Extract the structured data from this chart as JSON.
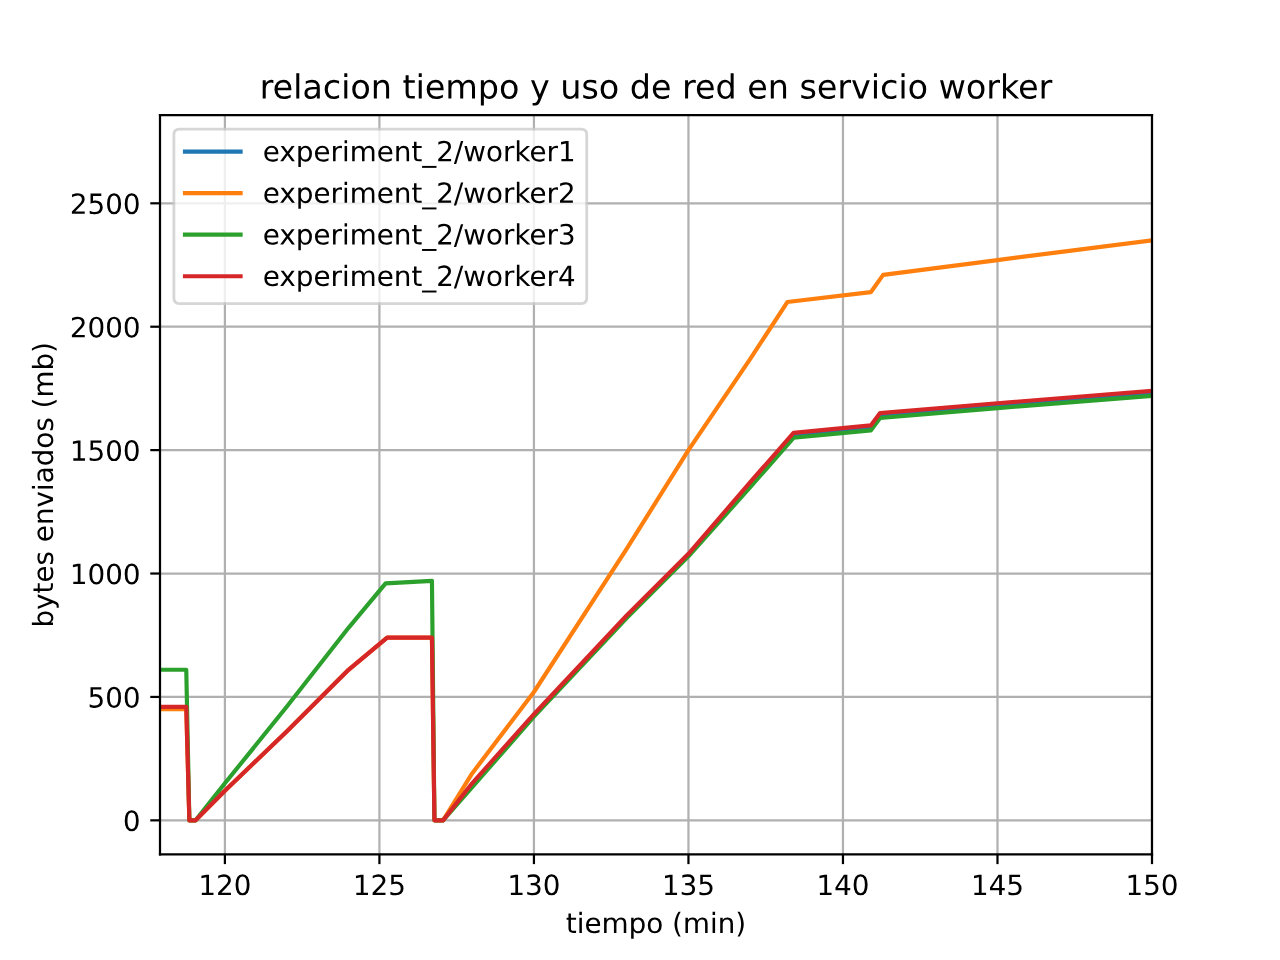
{
  "chart_data": {
    "type": "line",
    "title": "relacion tiempo y uso de red en servicio worker",
    "xlabel": "tiempo (min)",
    "ylabel": "bytes enviados (mb)",
    "xlim": [
      117.9,
      150
    ],
    "ylim": [
      -138,
      2857
    ],
    "xticks": [
      120,
      125,
      130,
      135,
      140,
      145,
      150
    ],
    "yticks": [
      0,
      500,
      1000,
      1500,
      2000,
      2500
    ],
    "grid": true,
    "legend": "top left",
    "series": [
      {
        "name": "experiment_2/worker1",
        "color": "#1f77b4",
        "x": [
          138.4,
          140.9,
          141.2,
          145,
          150
        ],
        "values": [
          1560,
          1590,
          1640,
          1680,
          1730
        ]
      },
      {
        "name": "experiment_2/worker2",
        "color": "#ff7f0e",
        "x": [
          117.9,
          118.75,
          118.85,
          119.05,
          120,
          122,
          124,
          125.25,
          126.7,
          126.78,
          127.06,
          128,
          130,
          133,
          135,
          137,
          138.2,
          140.9,
          141.3,
          145,
          150
        ],
        "values": [
          450,
          450,
          0,
          0,
          120,
          360,
          610,
          740,
          740,
          0,
          0,
          190,
          520,
          1100,
          1500,
          1870,
          2100,
          2140,
          2210,
          2270,
          2350
        ]
      },
      {
        "name": "experiment_2/worker3",
        "color": "#2ca02c",
        "x": [
          117.9,
          118.75,
          118.85,
          119.05,
          120,
          122,
          124,
          125.2,
          126.7,
          126.78,
          127.06,
          130,
          133,
          135,
          137,
          138.4,
          140.9,
          141.2,
          145,
          150
        ],
        "values": [
          610,
          610,
          0,
          0,
          150,
          460,
          780,
          960,
          970,
          0,
          0,
          420,
          820,
          1070,
          1350,
          1550,
          1580,
          1630,
          1670,
          1720
        ]
      },
      {
        "name": "experiment_2/worker4",
        "color": "#d62728",
        "x": [
          117.9,
          118.75,
          118.85,
          119.05,
          120,
          122,
          124,
          125.25,
          126.7,
          126.78,
          127.06,
          128,
          130,
          133,
          135,
          137,
          138.4,
          140.9,
          141.2,
          145,
          150
        ],
        "values": [
          460,
          460,
          0,
          0,
          120,
          360,
          610,
          740,
          740,
          0,
          0,
          150,
          430,
          830,
          1080,
          1370,
          1570,
          1600,
          1650,
          1690,
          1740
        ]
      }
    ]
  }
}
